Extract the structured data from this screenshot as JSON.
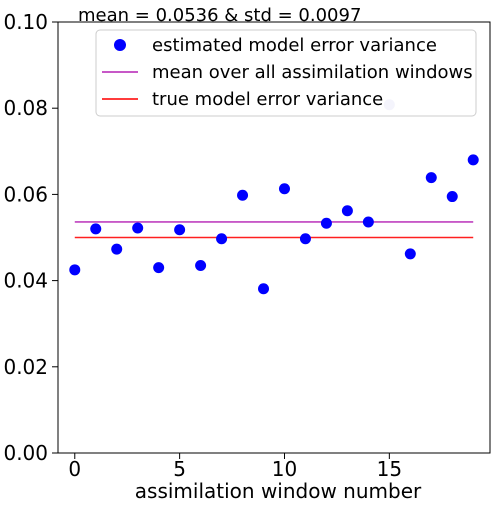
{
  "chart_data": {
    "type": "scatter",
    "title": "mean = 0.0536 & std = 0.0097",
    "xlabel": "assimilation window number",
    "ylabel": "",
    "xlim": [
      -0.8,
      19.8
    ],
    "ylim": [
      0.0,
      0.1
    ],
    "x_ticks": [
      0,
      5,
      10,
      15
    ],
    "x_tick_labels": [
      "0",
      "5",
      "10",
      "15"
    ],
    "y_ticks": [
      0.0,
      0.02,
      0.04,
      0.06,
      0.08,
      0.1
    ],
    "y_tick_labels": [
      "0.00",
      "0.02",
      "0.04",
      "0.06",
      "0.08",
      "0.10"
    ],
    "grid": false,
    "legend_position": "top-right",
    "series": [
      {
        "name": "estimated model error variance",
        "kind": "scatter",
        "color": "#0000ff",
        "x": [
          0,
          1,
          2,
          3,
          4,
          5,
          6,
          7,
          8,
          9,
          10,
          11,
          12,
          13,
          14,
          15,
          16,
          17,
          18,
          19
        ],
        "values": [
          0.0425,
          0.052,
          0.0473,
          0.0522,
          0.043,
          0.0518,
          0.0435,
          0.0497,
          0.0598,
          0.0381,
          0.0613,
          0.0497,
          0.0533,
          0.0562,
          0.0536,
          0.0808,
          0.0462,
          0.0639,
          0.0595,
          0.068
        ]
      },
      {
        "name": "mean over all assimilation windows",
        "kind": "line",
        "color": "#bf40bf",
        "x": [
          0,
          19
        ],
        "values": [
          0.0536,
          0.0536
        ]
      },
      {
        "name": "true model error variance",
        "kind": "line",
        "color": "#ff2020",
        "x": [
          0,
          19
        ],
        "values": [
          0.05,
          0.05
        ]
      }
    ]
  }
}
